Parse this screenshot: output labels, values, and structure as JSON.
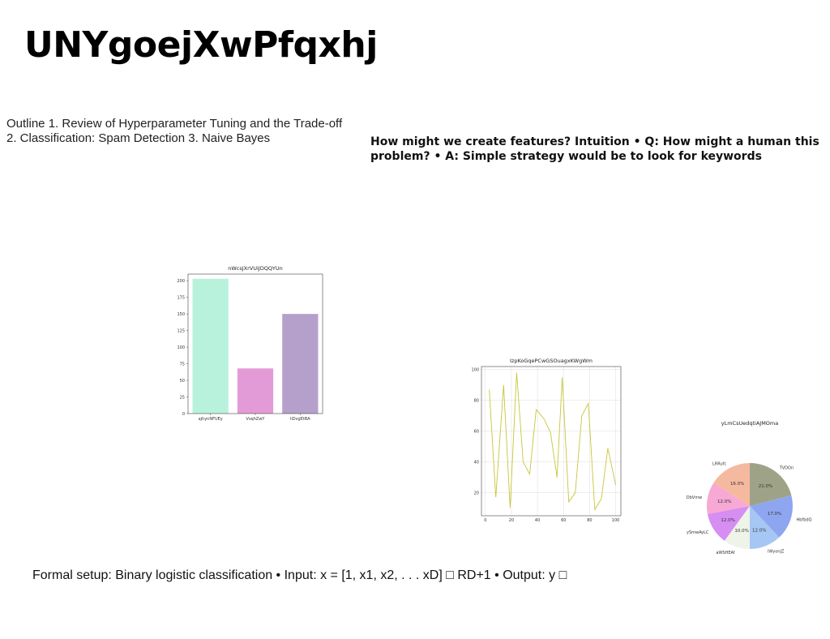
{
  "slide": {
    "title": "UNYgoejXwPfqxhj",
    "outline": "Outline 1. Review of Hyperparameter Tuning and the Trade-off 2. Classification: Spam Detection 3. Naive Bayes",
    "intuition": "How might we create features? Intuition • Q: How might a human this problem? • A: Simple strategy would be to look for keywords",
    "formal": "Formal setup: Binary logistic classification • Input: x = [1, x1, x2, . . . xD] □ RD+1 • Output: y □"
  },
  "chart_data": [
    {
      "type": "bar",
      "title": "nWcsJXrVUiJDQQYUn",
      "categories": [
        "ajhynNFUEy",
        "VsqhZwY",
        "liDvgEtBA"
      ],
      "values": [
        203,
        68,
        150
      ],
      "colors": [
        "#b9f2dc",
        "#e39bd8",
        "#b5a0cc"
      ],
      "ylim": [
        0,
        210
      ],
      "yticks": [
        0,
        25,
        50,
        75,
        100,
        125,
        150,
        175,
        200
      ],
      "xlabel": "",
      "ylabel": "",
      "grid": false
    },
    {
      "type": "line",
      "title": "IzpKoGqePCwGSOuagxKWgWm",
      "x": [
        3,
        8,
        14,
        19,
        24,
        29,
        34,
        39,
        45,
        50,
        55,
        59,
        64,
        69,
        74,
        79,
        84,
        89,
        94,
        100
      ],
      "y": [
        87,
        17,
        90,
        10,
        98,
        40,
        32,
        74,
        68,
        59,
        30,
        95,
        14,
        20,
        70,
        78,
        9,
        16,
        49,
        25
      ],
      "color": "#c6c63a",
      "xlim": [
        -3,
        104
      ],
      "ylim": [
        5,
        102
      ],
      "xticks": [
        0,
        20,
        40,
        60,
        80,
        100
      ],
      "yticks": [
        20,
        40,
        60,
        80,
        100
      ],
      "xlabel": "",
      "ylabel": "",
      "grid": true
    },
    {
      "type": "pie",
      "title": "yLmCsUedqtiAJMOma",
      "labels": [
        "TVDOn",
        "HbfbdQ",
        "lWyonJZ",
        "aWSHEAf",
        "ySmwAyLC",
        "DbVmw",
        "LRRufc"
      ],
      "values": [
        21.0,
        17.0,
        12.0,
        10.0,
        12.0,
        12.0,
        16.0
      ],
      "pct_labels": [
        "21.0%",
        "17.0%",
        "12.0%",
        "10.0%",
        "12.0%",
        "12.0%",
        "16.0%"
      ],
      "colors": [
        "#9ea287",
        "#8ea5ef",
        "#a6c6f4",
        "#eef4e8",
        "#d68ef3",
        "#f7a8d4",
        "#f5b9a0"
      ]
    }
  ]
}
